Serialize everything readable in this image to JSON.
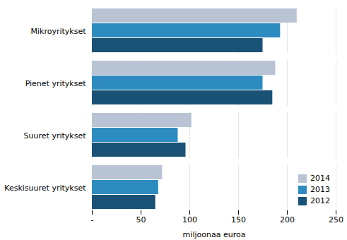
{
  "chart_data": {
    "type": "bar",
    "orientation": "horizontal",
    "categories": [
      "Mikroyritykset",
      "Pienet yritykset",
      "Suuret yritykset",
      "Keskisuuret yritykset"
    ],
    "series": [
      {
        "name": "2014",
        "color": "#b8c4d4",
        "values": [
          210,
          188,
          102,
          72
        ]
      },
      {
        "name": "2013",
        "color": "#2e8bbf",
        "values": [
          193,
          175,
          88,
          68
        ]
      },
      {
        "name": "2012",
        "color": "#1a5276",
        "values": [
          175,
          185,
          96,
          65
        ]
      }
    ],
    "xlabel": "miljoonaa euroa",
    "xlim": [
      0,
      250
    ],
    "xticks": [
      {
        "value": 0,
        "label": "-"
      },
      50,
      100,
      150,
      200,
      250
    ],
    "grid": true,
    "legend": "lower right"
  }
}
